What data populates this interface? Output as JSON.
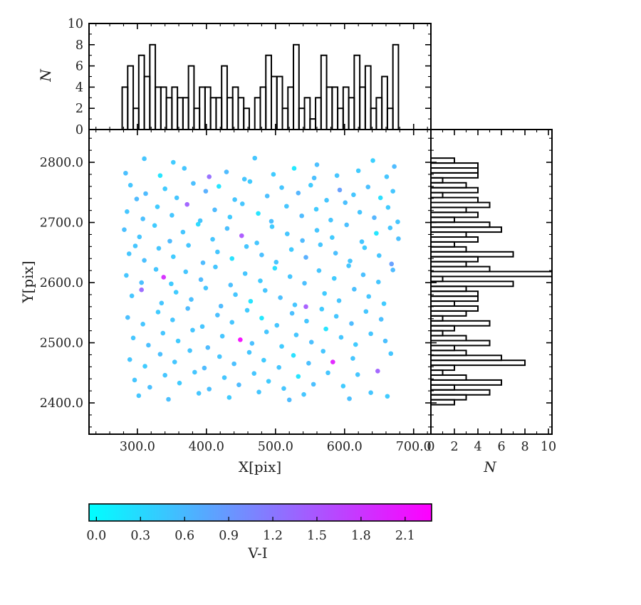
{
  "figure": {
    "background": "#ffffff"
  },
  "chart_data": {
    "type": "scatter",
    "layout": "scatter with top and right marginal histograms and horizontal colorbar",
    "main": {
      "type": "scatter",
      "xlabel": "X[pix]",
      "ylabel": "Y[pix]",
      "xlim": [
        230,
        725
      ],
      "ylim": [
        2348,
        2854.5
      ],
      "xtick_values": [
        300,
        400,
        500,
        600,
        700
      ],
      "xtick_labels": [
        "300.0",
        "400.0",
        "500.0",
        "600.0",
        "700.0"
      ],
      "ytick_values": [
        2400,
        2500,
        2600,
        2700,
        2800
      ],
      "ytick_labels": [
        "2400.0",
        "2500.0",
        "2600.0",
        "2700.0",
        "2800.0"
      ],
      "minor_step_x": 20,
      "minor_step_y": 20,
      "color_by": "V-I",
      "points": [
        [
          310,
          2806,
          0.5
        ],
        [
          352,
          2800,
          0.45
        ],
        [
          470,
          2807,
          0.5
        ],
        [
          560,
          2796,
          0.55
        ],
        [
          641,
          2803,
          0.4
        ],
        [
          672,
          2793,
          0.6
        ],
        [
          283,
          2782,
          0.55
        ],
        [
          333,
          2778,
          0.2
        ],
        [
          368,
          2790,
          0.5
        ],
        [
          404,
          2776,
          1.3
        ],
        [
          429,
          2784,
          0.6
        ],
        [
          455,
          2772,
          0.5
        ],
        [
          497,
          2780,
          0.45
        ],
        [
          527,
          2790,
          0.15
        ],
        [
          556,
          2774,
          0.55
        ],
        [
          589,
          2778,
          0.5
        ],
        [
          620,
          2786,
          0.45
        ],
        [
          661,
          2776,
          0.5
        ],
        [
          290,
          2762,
          0.5
        ],
        [
          312,
          2748,
          0.6
        ],
        [
          340,
          2756,
          0.45
        ],
        [
          357,
          2741,
          0.5
        ],
        [
          381,
          2765,
          0.55
        ],
        [
          399,
          2752,
          0.7
        ],
        [
          418,
          2760,
          0.2
        ],
        [
          441,
          2738,
          0.5
        ],
        [
          463,
          2768,
          0.45
        ],
        [
          488,
          2744,
          0.55
        ],
        [
          509,
          2758,
          0.5
        ],
        [
          533,
          2749,
          0.65
        ],
        [
          551,
          2762,
          0.45
        ],
        [
          574,
          2737,
          0.5
        ],
        [
          593,
          2754,
          0.85
        ],
        [
          613,
          2746,
          0.5
        ],
        [
          634,
          2759,
          0.55
        ],
        [
          652,
          2741,
          0.25
        ],
        [
          670,
          2752,
          0.5
        ],
        [
          299,
          2739,
          0.6
        ],
        [
          285,
          2718,
          0.5
        ],
        [
          308,
          2706,
          0.55
        ],
        [
          329,
          2726,
          0.45
        ],
        [
          350,
          2712,
          0.5
        ],
        [
          372,
          2730,
          1.4
        ],
        [
          391,
          2703,
          0.5
        ],
        [
          412,
          2721,
          0.6
        ],
        [
          434,
          2709,
          0.45
        ],
        [
          452,
          2731,
          0.5
        ],
        [
          475,
          2715,
          0.2
        ],
        [
          494,
          2702,
          0.55
        ],
        [
          516,
          2727,
          0.5
        ],
        [
          538,
          2711,
          0.6
        ],
        [
          559,
          2722,
          0.45
        ],
        [
          580,
          2704,
          0.5
        ],
        [
          601,
          2733,
          0.55
        ],
        [
          622,
          2717,
          0.5
        ],
        [
          643,
          2708,
          0.65
        ],
        [
          663,
          2725,
          0.45
        ],
        [
          677,
          2701,
          0.5
        ],
        [
          281,
          2688,
          0.55
        ],
        [
          303,
          2676,
          0.5
        ],
        [
          325,
          2695,
          0.45
        ],
        [
          347,
          2669,
          0.6
        ],
        [
          366,
          2684,
          0.5
        ],
        [
          388,
          2697,
          0.3
        ],
        [
          409,
          2672,
          0.5
        ],
        [
          430,
          2690,
          0.55
        ],
        [
          451,
          2678,
          1.5
        ],
        [
          473,
          2666,
          0.5
        ],
        [
          495,
          2693,
          0.45
        ],
        [
          517,
          2681,
          0.5
        ],
        [
          539,
          2670,
          0.6
        ],
        [
          560,
          2687,
          0.5
        ],
        [
          582,
          2675,
          0.45
        ],
        [
          603,
          2696,
          0.55
        ],
        [
          625,
          2668,
          0.5
        ],
        [
          646,
          2682,
          0.18
        ],
        [
          666,
          2691,
          0.5
        ],
        [
          678,
          2673,
          0.55
        ],
        [
          288,
          2648,
          0.5
        ],
        [
          310,
          2637,
          0.55
        ],
        [
          331,
          2657,
          0.5
        ],
        [
          352,
          2643,
          0.45
        ],
        [
          374,
          2662,
          0.5
        ],
        [
          395,
          2633,
          0.6
        ],
        [
          416,
          2651,
          0.5
        ],
        [
          437,
          2640,
          0.22
        ],
        [
          458,
          2660,
          0.5
        ],
        [
          480,
          2646,
          0.55
        ],
        [
          501,
          2634,
          0.5
        ],
        [
          523,
          2655,
          0.45
        ],
        [
          544,
          2642,
          0.7
        ],
        [
          565,
          2663,
          0.5
        ],
        [
          587,
          2649,
          0.55
        ],
        [
          608,
          2636,
          0.5
        ],
        [
          629,
          2658,
          0.45
        ],
        [
          650,
          2645,
          0.5
        ],
        [
          668,
          2631,
          0.85
        ],
        [
          297,
          2661,
          0.5
        ],
        [
          284,
          2612,
          0.5
        ],
        [
          306,
          2600,
          0.55
        ],
        [
          327,
          2622,
          0.5
        ],
        [
          338,
          2609,
          1.9
        ],
        [
          349,
          2598,
          0.45
        ],
        [
          370,
          2618,
          0.5
        ],
        [
          392,
          2605,
          0.6
        ],
        [
          413,
          2626,
          0.5
        ],
        [
          435,
          2596,
          0.55
        ],
        [
          456,
          2615,
          0.5
        ],
        [
          478,
          2603,
          0.45
        ],
        [
          499,
          2624,
          0.25
        ],
        [
          521,
          2610,
          0.5
        ],
        [
          542,
          2599,
          0.55
        ],
        [
          563,
          2620,
          0.5
        ],
        [
          585,
          2607,
          0.45
        ],
        [
          606,
          2628,
          0.5
        ],
        [
          627,
          2613,
          0.55
        ],
        [
          649,
          2601,
          0.5
        ],
        [
          670,
          2621,
          0.6
        ],
        [
          292,
          2578,
          0.5
        ],
        [
          306,
          2588,
          1.35
        ],
        [
          335,
          2566,
          0.5
        ],
        [
          356,
          2584,
          0.45
        ],
        [
          378,
          2572,
          0.55
        ],
        [
          399,
          2591,
          0.5
        ],
        [
          421,
          2561,
          0.6
        ],
        [
          442,
          2580,
          0.5
        ],
        [
          464,
          2569,
          0.2
        ],
        [
          485,
          2587,
          0.5
        ],
        [
          507,
          2575,
          0.55
        ],
        [
          528,
          2563,
          0.5
        ],
        [
          544,
          2560,
          1.45
        ],
        [
          571,
          2582,
          0.45
        ],
        [
          592,
          2570,
          0.5
        ],
        [
          614,
          2589,
          0.55
        ],
        [
          635,
          2577,
          0.5
        ],
        [
          657,
          2565,
          0.45
        ],
        [
          286,
          2542,
          0.55
        ],
        [
          308,
          2531,
          0.5
        ],
        [
          330,
          2551,
          0.45
        ],
        [
          351,
          2538,
          0.5
        ],
        [
          373,
          2557,
          0.6
        ],
        [
          394,
          2527,
          0.5
        ],
        [
          416,
          2546,
          0.55
        ],
        [
          437,
          2534,
          0.5
        ],
        [
          459,
          2554,
          0.45
        ],
        [
          480,
          2541,
          0.16
        ],
        [
          502,
          2529,
          0.5
        ],
        [
          524,
          2549,
          0.55
        ],
        [
          545,
          2536,
          0.5
        ],
        [
          567,
          2556,
          0.45
        ],
        [
          588,
          2544,
          0.5
        ],
        [
          610,
          2532,
          0.6
        ],
        [
          631,
          2552,
          0.5
        ],
        [
          653,
          2539,
          0.55
        ],
        [
          294,
          2508,
          0.5
        ],
        [
          316,
          2496,
          0.55
        ],
        [
          337,
          2516,
          0.5
        ],
        [
          359,
          2503,
          0.45
        ],
        [
          380,
          2521,
          0.5
        ],
        [
          402,
          2492,
          0.6
        ],
        [
          423,
          2511,
          0.5
        ],
        [
          449,
          2505,
          2.2
        ],
        [
          466,
          2499,
          0.55
        ],
        [
          487,
          2518,
          0.5
        ],
        [
          509,
          2494,
          0.45
        ],
        [
          530,
          2513,
          0.5
        ],
        [
          552,
          2501,
          0.55
        ],
        [
          573,
          2523,
          0.2
        ],
        [
          595,
          2509,
          0.5
        ],
        [
          616,
          2497,
          0.45
        ],
        [
          638,
          2515,
          0.5
        ],
        [
          659,
          2503,
          0.55
        ],
        [
          289,
          2472,
          0.5
        ],
        [
          311,
          2461,
          0.45
        ],
        [
          333,
          2481,
          0.55
        ],
        [
          354,
          2468,
          0.5
        ],
        [
          376,
          2487,
          0.5
        ],
        [
          397,
          2458,
          0.6
        ],
        [
          419,
          2477,
          0.5
        ],
        [
          440,
          2465,
          0.55
        ],
        [
          462,
          2484,
          0.5
        ],
        [
          483,
          2471,
          0.45
        ],
        [
          505,
          2459,
          0.5
        ],
        [
          526,
          2479,
          0.24
        ],
        [
          548,
          2466,
          0.55
        ],
        [
          569,
          2486,
          0.5
        ],
        [
          583,
          2468,
          2.0
        ],
        [
          612,
          2474,
          0.5
        ],
        [
          648,
          2453,
          1.4
        ],
        [
          667,
          2482,
          0.5
        ],
        [
          296,
          2438,
          0.5
        ],
        [
          318,
          2426,
          0.55
        ],
        [
          340,
          2446,
          0.5
        ],
        [
          361,
          2433,
          0.45
        ],
        [
          383,
          2451,
          0.5
        ],
        [
          404,
          2423,
          0.55
        ],
        [
          426,
          2442,
          0.5
        ],
        [
          447,
          2430,
          0.6
        ],
        [
          469,
          2449,
          0.5
        ],
        [
          490,
          2436,
          0.45
        ],
        [
          512,
          2424,
          0.5
        ],
        [
          533,
          2444,
          0.2
        ],
        [
          555,
          2431,
          0.55
        ],
        [
          576,
          2450,
          0.5
        ],
        [
          598,
          2428,
          0.45
        ],
        [
          619,
          2447,
          0.5
        ],
        [
          302,
          2412,
          0.5
        ],
        [
          345,
          2406,
          0.55
        ],
        [
          389,
          2416,
          0.5
        ],
        [
          433,
          2409,
          0.45
        ],
        [
          476,
          2418,
          0.5
        ],
        [
          520,
          2405,
          0.6
        ],
        [
          541,
          2414,
          0.5
        ],
        [
          607,
          2407,
          0.55
        ],
        [
          638,
          2417,
          0.5
        ],
        [
          662,
          2411,
          0.45
        ]
      ]
    },
    "top_histogram": {
      "type": "bar",
      "ylabel": "N",
      "ylim": [
        0,
        10
      ],
      "ytick_values": [
        0,
        2,
        4,
        6,
        8,
        10
      ],
      "ytick_labels": [
        "0",
        "2",
        "4",
        "6",
        "8",
        "10"
      ],
      "minor_step_y": 1,
      "bin_start": 278,
      "bin_width": 8,
      "values": [
        4,
        6,
        2,
        7,
        5,
        8,
        4,
        4,
        3,
        4,
        3,
        3,
        6,
        2,
        4,
        4,
        3,
        3,
        6,
        3,
        4,
        3,
        2,
        0,
        3,
        4,
        7,
        5,
        5,
        2,
        4,
        8,
        2,
        3,
        1,
        3,
        7,
        4,
        4,
        2,
        4,
        3,
        7,
        4,
        6,
        2,
        3,
        5,
        2,
        8
      ]
    },
    "right_histogram": {
      "type": "bar",
      "xlabel": "N",
      "xlim": [
        0,
        10.3
      ],
      "xtick_values": [
        0,
        2,
        4,
        6,
        8,
        10
      ],
      "xtick_labels": [
        "0",
        "2",
        "4",
        "6",
        "8",
        "10"
      ],
      "minor_step_x": 1,
      "bin_start": 2807,
      "bin_width": 8.2,
      "values": [
        2,
        4,
        4,
        4,
        1,
        3,
        4,
        1,
        4,
        5,
        3,
        4,
        2,
        5,
        6,
        3,
        4,
        2,
        3,
        7,
        4,
        3,
        5,
        11,
        1,
        7,
        3,
        4,
        4,
        2,
        4,
        3,
        1,
        5,
        2,
        1,
        3,
        5,
        2,
        3,
        6,
        8,
        2,
        1,
        3,
        6,
        2,
        5,
        3,
        2
      ]
    },
    "colorbar": {
      "label": "V-I",
      "vmin": -0.05,
      "vmax": 2.28,
      "tick_values": [
        0,
        0.3,
        0.6,
        0.9,
        1.2,
        1.5,
        1.8,
        2.1
      ],
      "tick_labels": [
        "0.0",
        "0.3",
        "0.6",
        "0.9",
        "1.2",
        "1.5",
        "1.8",
        "2.1"
      ],
      "color_start": "#00ffff",
      "color_end": "#ff00ff"
    }
  }
}
